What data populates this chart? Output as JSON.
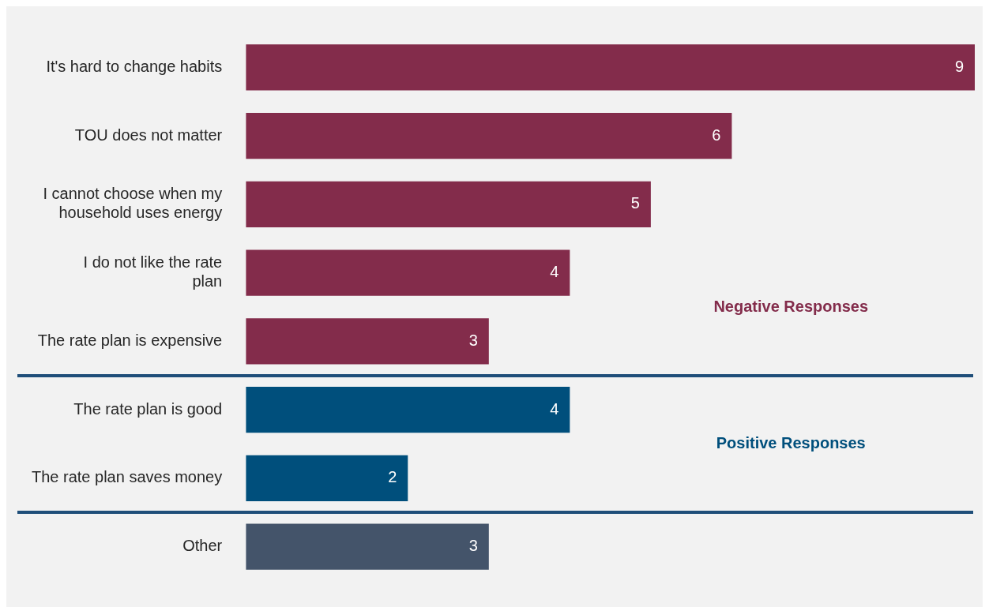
{
  "chart_data": {
    "type": "bar",
    "orientation": "horizontal",
    "categories": [
      "It's hard to change habits",
      "TOU does not matter",
      "I cannot choose when my household uses energy",
      "I do not like the rate plan",
      "The rate plan is expensive",
      "The rate plan is good",
      "The rate plan saves money",
      "Other"
    ],
    "values": [
      9,
      6,
      5,
      4,
      3,
      4,
      2,
      3
    ],
    "colors": [
      "#832c4b",
      "#832c4b",
      "#832c4b",
      "#832c4b",
      "#832c4b",
      "#004f7c",
      "#004f7c",
      "#44546a"
    ],
    "data_labels": true,
    "tick_labels": "y",
    "annotations": [
      "Negative Responses",
      "Positive Responses"
    ]
  }
}
